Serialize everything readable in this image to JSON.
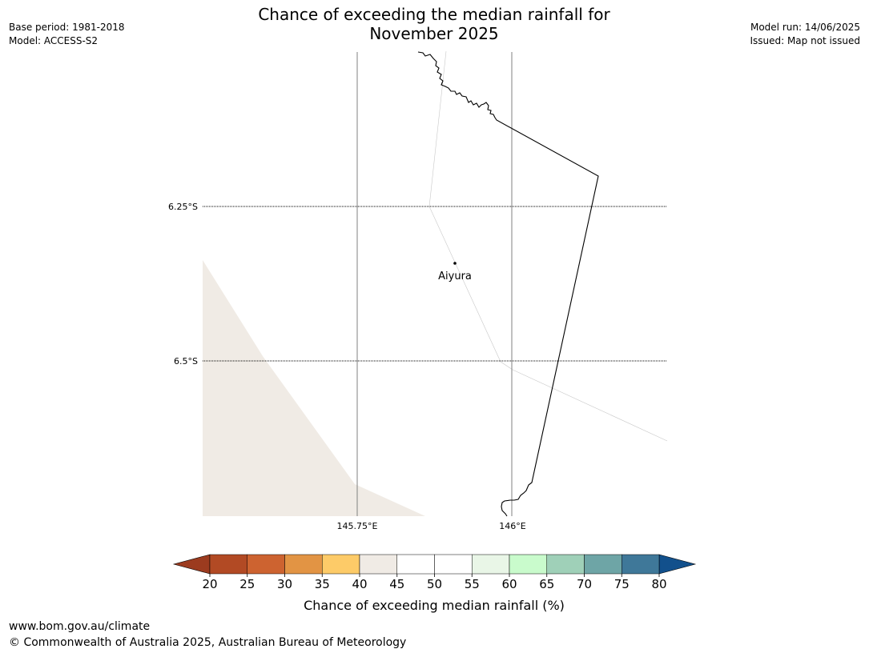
{
  "header": {
    "title_line1": "Chance of exceeding the median rainfall for",
    "title_line2": "November 2025",
    "base_period": "Base period: 1981-2018",
    "model": "Model: ACCESS-S2",
    "model_run": "Model run: 14/06/2025",
    "issued": "Issued: Map not issued"
  },
  "map": {
    "lat_labels": [
      "6.25°S",
      "6.5°S"
    ],
    "lon_labels": [
      "145.75°E",
      "146°E"
    ],
    "place_name": "Aiyura",
    "shaded_category": "40-45",
    "shaded_color": "#f0ebe5"
  },
  "colorbar": {
    "label": "Chance of exceeding median rainfall (%)",
    "ticks": [
      "20",
      "25",
      "30",
      "35",
      "40",
      "45",
      "50",
      "55",
      "60",
      "65",
      "70",
      "75",
      "80"
    ],
    "under_color": "#9c3b1f",
    "over_color": "#12508c",
    "colors": [
      "#b24a24",
      "#cd6330",
      "#e29444",
      "#fdcb68",
      "#f0ebe5",
      "#ffffff",
      "#ffffff",
      "#e9f6e7",
      "#c9fbcc",
      "#9fd0b8",
      "#6ea5a6",
      "#3f7899"
    ]
  },
  "footer": {
    "url": "www.bom.gov.au/climate",
    "copyright": "© Commonwealth of Australia 2025, Australian Bureau of Meteorology"
  }
}
